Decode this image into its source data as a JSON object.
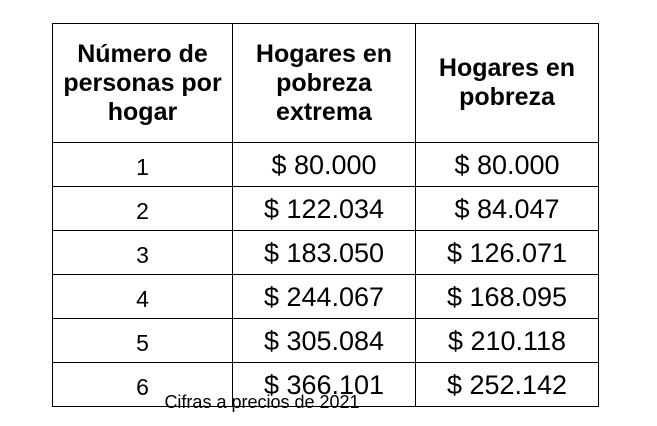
{
  "table": {
    "headers": [
      "Número de personas por hogar",
      "Hogares en pobreza extrema",
      "Hogares en pobreza"
    ],
    "rows": [
      [
        "1",
        "$ 80.000",
        "$ 80.000"
      ],
      [
        "2",
        "$ 122.034",
        "$ 84.047"
      ],
      [
        "3",
        "$ 183.050",
        "$ 126.071"
      ],
      [
        "4",
        "$ 244.067",
        "$ 168.095"
      ],
      [
        "5",
        "$ 305.084",
        "$ 210.118"
      ],
      [
        "6",
        "$ 366.101",
        "$ 252.142"
      ]
    ]
  },
  "caption": "Cifras a precios de 2021"
}
